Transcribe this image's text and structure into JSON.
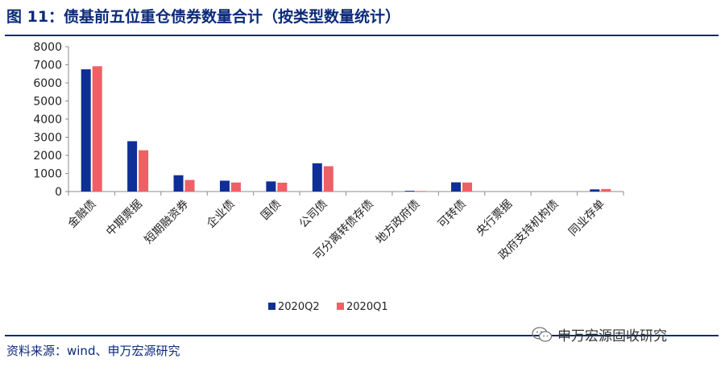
{
  "figure": {
    "title": "图 11：债基前五位重仓债券数量合计（按类型数量统计）",
    "source": "资料来源：wind、申万宏源研究",
    "watermark": "申万宏源固收研究"
  },
  "colors": {
    "title": "#0b2a78",
    "series_q2": "#0e2f96",
    "series_q1": "#ee6065"
  },
  "chart_data": {
    "type": "bar",
    "categories": [
      "金融债",
      "中期票据",
      "短期融资券",
      "企业债",
      "国债",
      "公司债",
      "可分离转债存债",
      "地方政府债",
      "可转债",
      "央行票据",
      "政府支持机构债",
      "同业存单"
    ],
    "series": [
      {
        "name": "2020Q2",
        "values": [
          6750,
          2780,
          900,
          600,
          560,
          1560,
          0,
          40,
          510,
          0,
          0,
          120
        ]
      },
      {
        "name": "2020Q1",
        "values": [
          6920,
          2280,
          640,
          500,
          490,
          1400,
          0,
          30,
          500,
          0,
          0,
          140
        ]
      }
    ],
    "ylim": [
      0,
      8000
    ],
    "yticks": [
      "0",
      "1000",
      "2000",
      "3000",
      "4000",
      "5000",
      "6000",
      "7000",
      "8000"
    ],
    "grid": false,
    "legend_position": "bottom-center"
  }
}
